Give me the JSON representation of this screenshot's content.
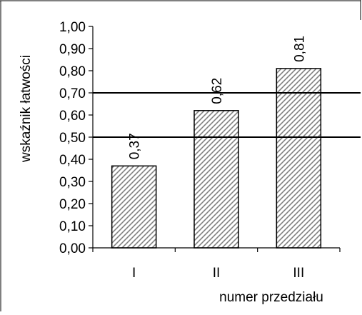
{
  "chart_data": {
    "type": "bar",
    "categories": [
      "I",
      "II",
      "III"
    ],
    "values": [
      0.37,
      0.62,
      0.81
    ],
    "data_labels": [
      "0,37",
      "0,62",
      "0,81"
    ],
    "ylabel": "wskaźnik łatwości",
    "xlabel": "numer przedziału",
    "ylim": [
      0,
      1.0
    ],
    "yticks": [
      0.0,
      0.1,
      0.2,
      0.3,
      0.4,
      0.5,
      0.6,
      0.7,
      0.8,
      0.9,
      1.0
    ],
    "ytick_labels": [
      "0,00",
      "0,10",
      "0,20",
      "0,30",
      "0,40",
      "0,50",
      "0,60",
      "0,70",
      "0,80",
      "0,90",
      "1,00"
    ],
    "reference_lines": [
      0.5,
      0.7
    ],
    "grid": false,
    "legend": "none",
    "bar_pattern": "diagonal-hatch",
    "colors": {
      "bar_fill": "#ffffff",
      "bar_hatch": "#808080",
      "bar_outline": "#000000",
      "axis": "#000000",
      "reference_line": "#000000"
    }
  }
}
